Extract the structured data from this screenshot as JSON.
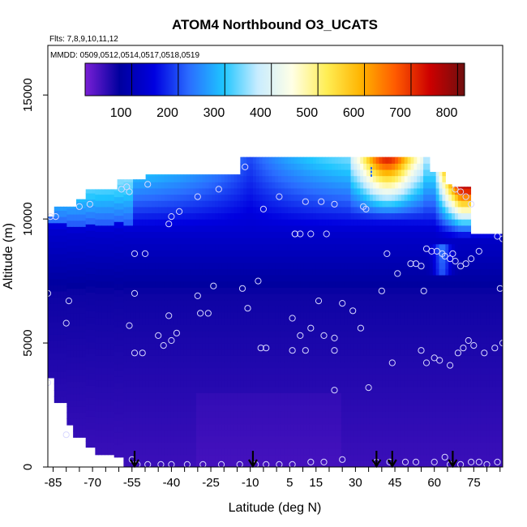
{
  "chart_data": {
    "type": "heatmap",
    "title": "ATOM4 Northbound O3_UCATS",
    "flights_label": "Flts: 7,8,9,10,11,12",
    "dates_label": "MMDD: 0509,0512,0514,0517,0518,0519",
    "xlabel": "Latitude (deg N)",
    "ylabel": "Altitude (m)",
    "xlim": [
      -87,
      86
    ],
    "ylim": [
      0,
      17000
    ],
    "x_ticks": [
      -85,
      -70,
      -55,
      -40,
      -25,
      -10,
      5,
      15,
      30,
      45,
      60,
      75
    ],
    "x_tick_labels": [
      "-85",
      "-70",
      "-55",
      "-40",
      "-25",
      "-10",
      "5",
      "15",
      "30",
      "45",
      "60",
      "75"
    ],
    "y_ticks": [
      0,
      5000,
      10000,
      15000
    ],
    "y_tick_labels": [
      "0",
      "5000",
      "10000",
      "15000"
    ],
    "colorbar": {
      "range": [
        0,
        815
      ],
      "ticks": [
        100,
        200,
        300,
        400,
        500,
        600,
        700,
        800
      ],
      "tick_labels": [
        "100",
        "200",
        "300",
        "400",
        "500",
        "600",
        "700",
        "800"
      ],
      "colors": [
        "#7a1fd6",
        "#00009e",
        "#0000e0",
        "#2a6cff",
        "#1ec5ff",
        "#c8ecff",
        "#ffffe6",
        "#ffee55",
        "#ffb400",
        "#ff5a00",
        "#cc0000",
        "#6e0f0f"
      ]
    },
    "arrow_latitudes": [
      -54,
      -9,
      38,
      44,
      67
    ],
    "samples": [
      [
        -86,
        10100
      ],
      [
        -84,
        10100
      ],
      [
        -75,
        10500
      ],
      [
        -71,
        10600
      ],
      [
        -59,
        11200
      ],
      [
        -57,
        11300
      ],
      [
        -56,
        11100
      ],
      [
        -49,
        11400
      ],
      [
        -41,
        9800
      ],
      [
        -40,
        10100
      ],
      [
        -37,
        10300
      ],
      [
        -30,
        10900
      ],
      [
        -22,
        11200
      ],
      [
        -12,
        12100
      ],
      [
        -5,
        10400
      ],
      [
        1,
        10900
      ],
      [
        7,
        9400
      ],
      [
        11,
        10700
      ],
      [
        17,
        10700
      ],
      [
        22,
        10600
      ],
      [
        33,
        10500
      ],
      [
        34,
        10400
      ],
      [
        68,
        11200
      ],
      [
        70,
        11100
      ],
      [
        72,
        10900
      ],
      [
        74,
        10600
      ],
      [
        7,
        9400
      ],
      [
        9,
        9400
      ],
      [
        13,
        9400
      ],
      [
        19,
        9400
      ],
      [
        84,
        9300
      ],
      [
        86,
        9200
      ],
      [
        -54,
        8600
      ],
      [
        -50,
        8600
      ],
      [
        42,
        8600
      ],
      [
        51,
        8200
      ],
      [
        53,
        8200
      ],
      [
        57,
        8800
      ],
      [
        59,
        8700
      ],
      [
        61,
        8700
      ],
      [
        63,
        8600
      ],
      [
        64,
        8500
      ],
      [
        66,
        8400
      ],
      [
        68,
        8300
      ],
      [
        70,
        8100
      ],
      [
        72,
        8200
      ],
      [
        74,
        8400
      ],
      [
        77,
        8700
      ],
      [
        46,
        7800
      ],
      [
        55,
        8100
      ],
      [
        -87,
        7000
      ],
      [
        -79,
        6700
      ],
      [
        -54,
        7000
      ],
      [
        -30,
        6900
      ],
      [
        -24,
        7300
      ],
      [
        -13,
        7200
      ],
      [
        -7,
        7500
      ],
      [
        16,
        6700
      ],
      [
        25,
        6600
      ],
      [
        40,
        7100
      ],
      [
        56,
        7100
      ],
      [
        67,
        8600
      ],
      [
        85,
        7200
      ],
      [
        -80,
        5800
      ],
      [
        -56,
        5700
      ],
      [
        -41,
        6100
      ],
      [
        -29,
        6200
      ],
      [
        -26,
        6200
      ],
      [
        -11,
        6400
      ],
      [
        6,
        6000
      ],
      [
        9,
        5300
      ],
      [
        13,
        5600
      ],
      [
        18,
        5300
      ],
      [
        22,
        5200
      ],
      [
        29,
        6300
      ],
      [
        32,
        5600
      ],
      [
        -54,
        4600
      ],
      [
        -51,
        4600
      ],
      [
        -45,
        5300
      ],
      [
        -43,
        4900
      ],
      [
        -40,
        5100
      ],
      [
        -38,
        5400
      ],
      [
        -6,
        4800
      ],
      [
        -4,
        4800
      ],
      [
        6,
        4700
      ],
      [
        11,
        4700
      ],
      [
        22,
        4700
      ],
      [
        44,
        4200
      ],
      [
        55,
        4700
      ],
      [
        57,
        4200
      ],
      [
        60,
        4400
      ],
      [
        62,
        4300
      ],
      [
        66,
        4100
      ],
      [
        69,
        4600
      ],
      [
        71,
        4800
      ],
      [
        73,
        5100
      ],
      [
        75,
        4900
      ],
      [
        79,
        4600
      ],
      [
        83,
        4800
      ],
      [
        86,
        5000
      ],
      [
        -87,
        3400
      ],
      [
        22,
        3100
      ],
      [
        35,
        3200
      ],
      [
        -80,
        1300
      ],
      [
        -55,
        300
      ],
      [
        -53,
        100
      ],
      [
        -49,
        100
      ],
      [
        -44,
        100
      ],
      [
        -40,
        100
      ],
      [
        -34,
        100
      ],
      [
        -28,
        100
      ],
      [
        -21,
        100
      ],
      [
        -14,
        100
      ],
      [
        -8,
        100
      ],
      [
        -4,
        100
      ],
      [
        1,
        100
      ],
      [
        6,
        100
      ],
      [
        13,
        200
      ],
      [
        18,
        200
      ],
      [
        25,
        300
      ],
      [
        38,
        200
      ],
      [
        43,
        200
      ],
      [
        49,
        200
      ],
      [
        53,
        200
      ],
      [
        60,
        200
      ],
      [
        64,
        400
      ],
      [
        66,
        100
      ],
      [
        70,
        100
      ],
      [
        74,
        200
      ],
      [
        77,
        200
      ],
      [
        80,
        100
      ],
      [
        84,
        200
      ]
    ]
  }
}
